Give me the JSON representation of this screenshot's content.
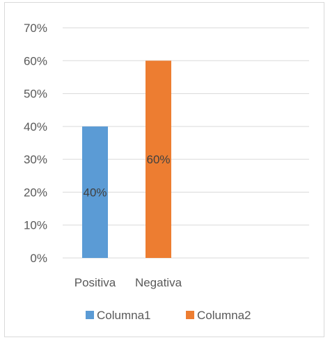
{
  "chart_data": {
    "type": "bar",
    "categories": [
      "Positiva",
      "Negativa"
    ],
    "series": [
      {
        "name": "Columna1",
        "values": [
          0.4,
          null
        ],
        "color": "#5B9BD5"
      },
      {
        "name": "Columna2",
        "values": [
          null,
          0.6
        ],
        "color": "#ED7D31"
      }
    ],
    "data_labels": [
      "40%",
      "60%"
    ],
    "y_ticks": [
      "0%",
      "10%",
      "20%",
      "30%",
      "40%",
      "50%",
      "60%",
      "70%"
    ],
    "ylim": [
      0,
      0.7
    ],
    "grid": true,
    "gridline_color": "#d9d9d9",
    "legend_position": "bottom"
  }
}
